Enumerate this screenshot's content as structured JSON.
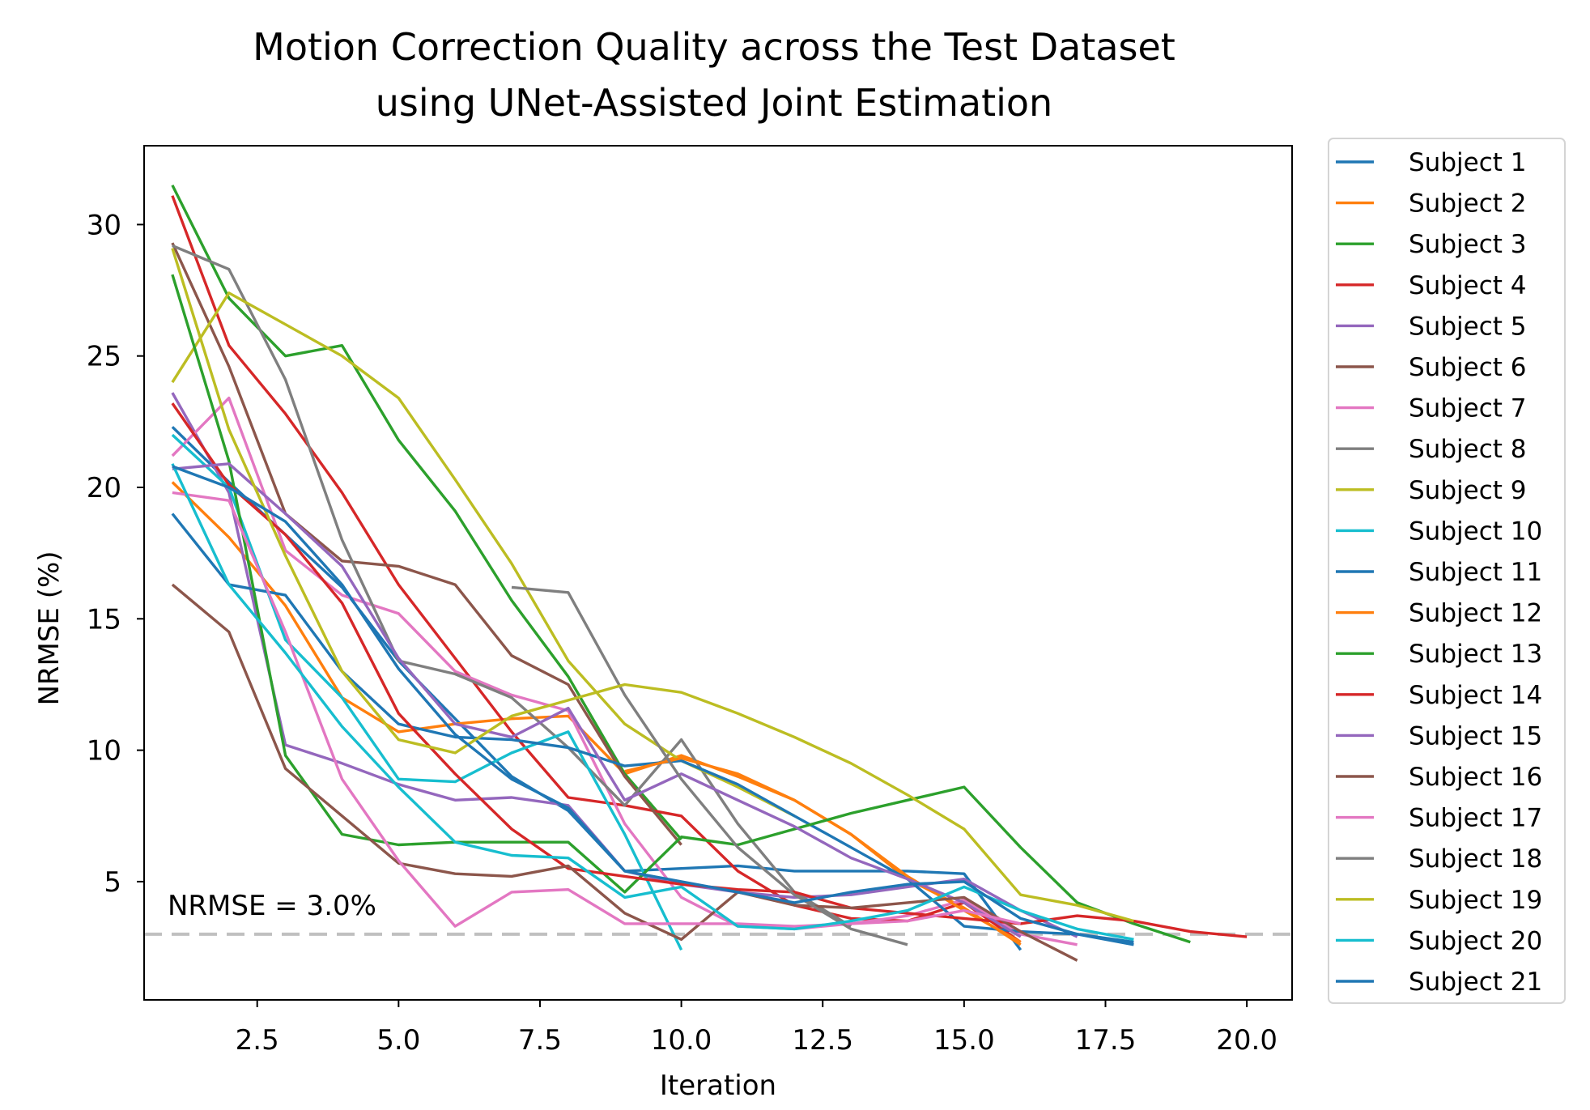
{
  "chart_data": {
    "type": "line",
    "title_lines": [
      "Motion Correction Quality across the Test Dataset",
      "using UNet-Assisted Joint Estimation"
    ],
    "xlabel": "Iteration",
    "ylabel": "NRMSE (%)",
    "xlim": [
      0.5,
      20.8
    ],
    "ylim": [
      0.5,
      33
    ],
    "xticks": [
      2.5,
      5.0,
      7.5,
      10.0,
      12.5,
      15.0,
      17.5,
      20.0
    ],
    "xtick_labels": [
      "2.5",
      "5.0",
      "7.5",
      "10.0",
      "12.5",
      "15.0",
      "17.5",
      "20.0"
    ],
    "yticks": [
      5,
      10,
      15,
      20,
      25,
      30
    ],
    "ytick_labels": [
      "5",
      "10",
      "15",
      "20",
      "25",
      "30"
    ],
    "grid": false,
    "legend_position": "outside-right",
    "reference_line": {
      "y": 3.0,
      "label": "NRMSE = 3.0%",
      "color": "#c0c0c0",
      "style": "dashed"
    },
    "series": [
      {
        "name": "Subject 1",
        "color": "#1f77b4",
        "x": [
          1,
          2,
          3,
          4,
          5,
          6,
          7,
          8,
          9,
          10,
          11,
          12,
          13,
          14,
          15,
          16
        ],
        "values": [
          22.3,
          20.2,
          18.2,
          16.2,
          13.4,
          11.2,
          9.0,
          7.7,
          5.4,
          5.5,
          5.6,
          5.4,
          5.4,
          5.4,
          5.3,
          2.4
        ]
      },
      {
        "name": "Subject 2",
        "color": "#ff7f0e",
        "x": [
          1,
          2,
          3,
          4,
          5,
          6,
          7,
          8,
          9,
          10,
          11,
          12,
          13,
          14,
          15,
          16
        ],
        "values": [
          20.2,
          18.1,
          15.5,
          12.0,
          10.7,
          11.0,
          11.2,
          11.3,
          9.1,
          9.8,
          9.0,
          8.1,
          6.8,
          5.1,
          4.0,
          2.6
        ]
      },
      {
        "name": "Subject 3",
        "color": "#2ca02c",
        "x": [
          1,
          2,
          3,
          4,
          5,
          6,
          7,
          8,
          9,
          10
        ],
        "values": [
          31.5,
          27.2,
          25.0,
          25.4,
          21.8,
          19.1,
          15.7,
          12.8,
          9.1,
          6.6
        ]
      },
      {
        "name": "Subject 4",
        "color": "#d62728",
        "x": [
          1,
          2,
          3,
          4,
          5,
          6,
          7,
          8,
          9,
          10,
          11,
          12,
          13,
          14,
          15,
          16
        ],
        "values": [
          31.1,
          25.4,
          22.8,
          19.8,
          16.3,
          13.5,
          10.7,
          8.2,
          7.9,
          7.5,
          5.4,
          4.1,
          3.6,
          3.5,
          4.2,
          2.7
        ]
      },
      {
        "name": "Subject 5",
        "color": "#9467bd",
        "x": [
          1,
          2,
          3,
          4,
          5,
          6,
          7,
          8,
          9,
          10,
          11,
          12,
          13,
          14,
          15,
          16,
          17
        ],
        "values": [
          23.6,
          19.8,
          10.2,
          9.5,
          8.7,
          8.1,
          8.2,
          7.9,
          5.4,
          4.9,
          4.6,
          4.4,
          4.5,
          4.8,
          5.1,
          3.9,
          2.9
        ]
      },
      {
        "name": "Subject 6",
        "color": "#8c564b",
        "x": [
          1,
          2,
          3,
          4,
          5,
          6,
          7,
          8,
          9,
          10
        ],
        "values": [
          29.3,
          24.6,
          19.0,
          17.2,
          17.0,
          16.3,
          13.6,
          12.5,
          9.0,
          6.4
        ]
      },
      {
        "name": "Subject 7",
        "color": "#e377c2",
        "x": [
          1,
          2,
          3,
          4,
          5,
          6,
          7,
          8,
          9,
          10,
          11,
          12,
          13,
          14,
          15,
          16,
          17
        ],
        "values": [
          21.2,
          23.4,
          17.6,
          15.9,
          15.2,
          13.0,
          12.1,
          11.5,
          7.2,
          4.4,
          3.3,
          3.2,
          3.4,
          3.7,
          4.3,
          3.0,
          2.6
        ]
      },
      {
        "name": "Subject 8",
        "color": "#7f7f7f",
        "x": [
          1,
          2,
          3,
          4,
          5,
          6,
          7,
          8,
          9,
          10,
          11,
          12,
          13
        ],
        "values": [
          29.2,
          28.3,
          24.1,
          18.0,
          13.4,
          12.9,
          12.0,
          10.1,
          7.9,
          10.4,
          7.2,
          4.6,
          3.3
        ]
      },
      {
        "name": "Subject 9",
        "color": "#bcbd22",
        "x": [
          1,
          2,
          3,
          4,
          5,
          6,
          7,
          8,
          9,
          10,
          11,
          12
        ],
        "values": [
          24.0,
          27.4,
          26.2,
          25.0,
          23.4,
          20.3,
          17.1,
          13.4,
          11.0,
          9.6,
          8.6,
          7.5
        ]
      },
      {
        "name": "Subject 10",
        "color": "#17becf",
        "x": [
          1,
          2,
          3,
          4,
          5,
          6,
          7,
          8,
          9,
          10
        ],
        "values": [
          22.0,
          20.0,
          14.2,
          12.0,
          8.9,
          8.8,
          9.9,
          10.7,
          6.8,
          2.4
        ]
      },
      {
        "name": "Subject 11",
        "color": "#1f77b4",
        "x": [
          1,
          2,
          3,
          4,
          5,
          6,
          7,
          8,
          9,
          10,
          11,
          12,
          13,
          14,
          15,
          16,
          17,
          18
        ],
        "values": [
          19.0,
          16.3,
          15.9,
          13.0,
          11.0,
          10.5,
          10.4,
          10.1,
          9.4,
          9.6,
          8.7,
          7.5,
          6.3,
          5.1,
          3.3,
          3.1,
          3.0,
          2.7
        ]
      },
      {
        "name": "Subject 12",
        "color": "#ff7f0e",
        "x": [
          9,
          10,
          11,
          12,
          13,
          14,
          15,
          16
        ],
        "values": [
          9.2,
          9.7,
          9.1,
          8.1,
          6.8,
          5.2,
          3.9,
          2.7
        ]
      },
      {
        "name": "Subject 13",
        "color": "#2ca02c",
        "x": [
          1,
          2,
          3,
          4,
          5,
          6,
          7,
          8,
          9,
          10,
          11,
          12,
          13,
          14,
          15,
          16,
          17,
          18,
          19
        ],
        "values": [
          28.1,
          21.0,
          9.8,
          6.8,
          6.4,
          6.5,
          6.5,
          6.5,
          4.6,
          6.7,
          6.4,
          7.0,
          7.6,
          8.1,
          8.6,
          6.3,
          4.2,
          3.4,
          2.7
        ]
      },
      {
        "name": "Subject 14",
        "color": "#d62728",
        "x": [
          1,
          2,
          3,
          4,
          5,
          6,
          7,
          8,
          9,
          10,
          11,
          12,
          13,
          14,
          15,
          16,
          17,
          18,
          19,
          20
        ],
        "values": [
          23.2,
          20.1,
          18.2,
          15.6,
          11.4,
          9.1,
          7.0,
          5.5,
          5.2,
          4.9,
          4.7,
          4.6,
          4.0,
          3.8,
          3.6,
          3.4,
          3.7,
          3.5,
          3.1,
          2.9
        ]
      },
      {
        "name": "Subject 15",
        "color": "#9467bd",
        "x": [
          1,
          2,
          3,
          4,
          5,
          6,
          7,
          8,
          9,
          10,
          11,
          12,
          13,
          14,
          15,
          16
        ],
        "values": [
          20.7,
          20.9,
          19.0,
          17.0,
          13.5,
          11.0,
          10.5,
          11.6,
          8.1,
          9.1,
          8.1,
          7.1,
          5.9,
          5.1,
          4.2,
          2.9
        ]
      },
      {
        "name": "Subject 16",
        "color": "#8c564b",
        "x": [
          1,
          2,
          3,
          4,
          5,
          6,
          7,
          8,
          9,
          10,
          11,
          12,
          13,
          14,
          15,
          16,
          17
        ],
        "values": [
          16.3,
          14.5,
          9.3,
          7.5,
          5.7,
          5.3,
          5.2,
          5.6,
          3.8,
          2.8,
          4.6,
          4.1,
          4.0,
          4.2,
          4.4,
          3.1,
          2.0
        ]
      },
      {
        "name": "Subject 17",
        "color": "#e377c2",
        "x": [
          1,
          2,
          3,
          4,
          5,
          6,
          7,
          8,
          9,
          10,
          11,
          12,
          13,
          14,
          15,
          16
        ],
        "values": [
          19.8,
          19.5,
          14.5,
          8.9,
          5.8,
          3.3,
          4.6,
          4.7,
          3.4,
          3.4,
          3.4,
          3.3,
          3.4,
          3.5,
          3.9,
          3.4
        ]
      },
      {
        "name": "Subject 18",
        "color": "#7f7f7f",
        "x": [
          7,
          8,
          9,
          10,
          11,
          12,
          13,
          14
        ],
        "values": [
          16.2,
          16.0,
          12.1,
          8.9,
          6.3,
          4.5,
          3.2,
          2.6
        ]
      },
      {
        "name": "Subject 19",
        "color": "#bcbd22",
        "x": [
          1,
          2,
          3,
          4,
          5,
          6,
          7,
          8,
          9,
          10,
          11,
          12,
          13,
          14,
          15,
          16,
          17,
          18
        ],
        "values": [
          29.1,
          22.2,
          17.4,
          13.0,
          10.4,
          9.9,
          11.3,
          11.9,
          12.5,
          12.2,
          11.4,
          10.5,
          9.5,
          8.3,
          7.0,
          4.5,
          4.1,
          3.5
        ]
      },
      {
        "name": "Subject 20",
        "color": "#17becf",
        "x": [
          1,
          2,
          3,
          4,
          5,
          6,
          7,
          8,
          9,
          10,
          11,
          12,
          13,
          14,
          15,
          16,
          17,
          18
        ],
        "values": [
          20.9,
          16.3,
          13.7,
          10.9,
          8.6,
          6.5,
          6.0,
          5.9,
          4.4,
          4.8,
          3.3,
          3.2,
          3.5,
          3.9,
          4.8,
          3.9,
          3.2,
          2.8
        ]
      },
      {
        "name": "Subject 21",
        "color": "#1f77b4",
        "x": [
          1,
          2,
          3,
          4,
          5,
          6,
          7,
          8,
          9,
          10,
          11,
          12,
          13,
          14,
          15,
          16,
          17,
          18
        ],
        "values": [
          20.8,
          20.0,
          18.7,
          16.3,
          13.1,
          10.6,
          8.9,
          7.8,
          5.4,
          5.0,
          4.6,
          4.2,
          4.6,
          4.9,
          5.0,
          3.6,
          3.0,
          2.6
        ]
      }
    ]
  }
}
